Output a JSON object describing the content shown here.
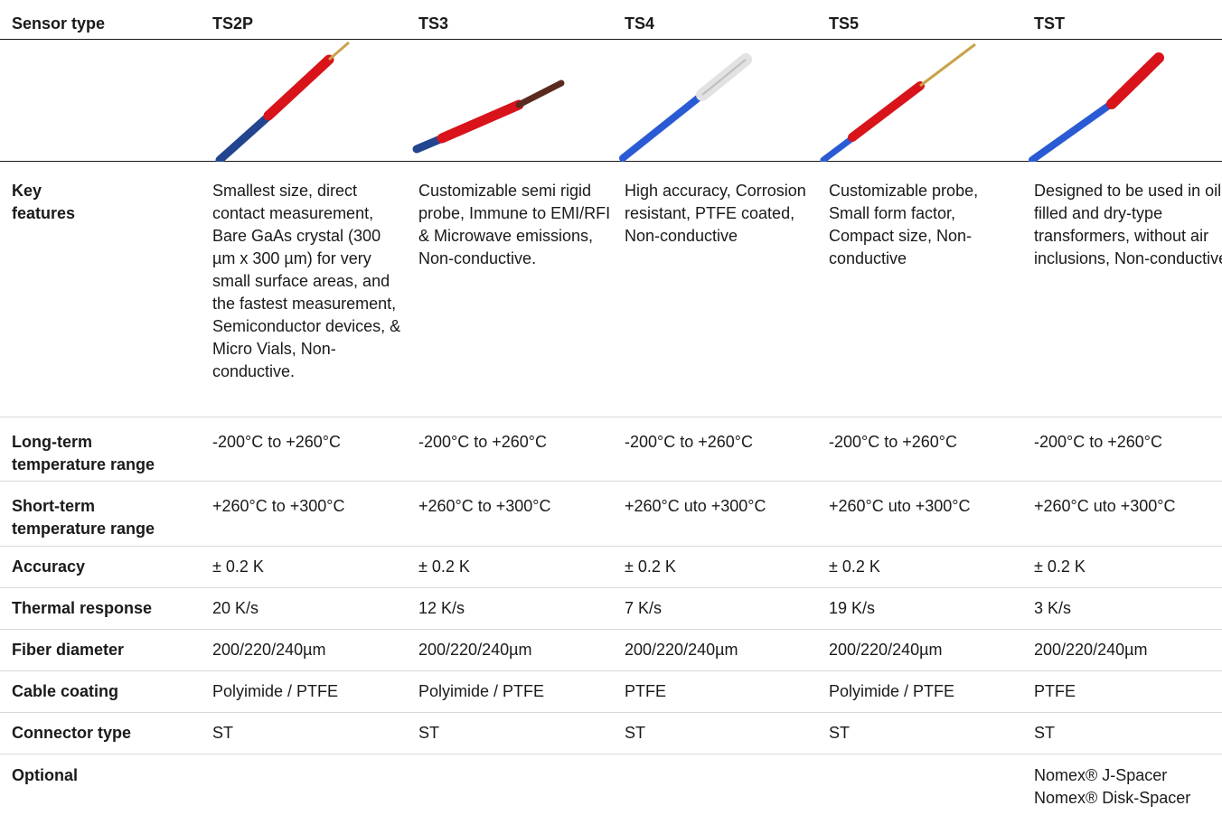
{
  "columns": [
    "TS2P",
    "TS3",
    "TS4",
    "TS5",
    "TST"
  ],
  "rows": {
    "sensor_type": {
      "label": "Sensor type"
    },
    "key_features": {
      "label_line1": "Key",
      "label_line2": "features",
      "values": [
        "Smallest size, direct contact measurement, Bare GaAs crystal (300 µm x 300 µm) for very small surface areas, and the fastest measurement, Semiconductor devices, & Micro Vials, Non-conductive.",
        "Customizable semi rigid probe, Immune to EMI/RFI & Microwave emissions, Non-conductive.",
        "High accuracy, Corrosion resistant, PTFE coated, Non-conductive",
        "Customizable probe, Small form factor, Compact size, Non-conductive",
        "Designed to be used in oil-filled and dry-type transformers, without air inclusions, Non-conductive"
      ]
    },
    "long_term": {
      "label_line1": "Long-term",
      "label_line2": "temperature range",
      "values": [
        "-200°C  to +260°C",
        "-200°C to +260°C",
        "-200°C to +260°C",
        "-200°C  to +260°C",
        "-200°C  to +260°C"
      ]
    },
    "short_term": {
      "label_line1": "Short-term",
      "label_line2": "temperature range",
      "values": [
        "+260°C to +300°C",
        "+260°C  to +300°C",
        "+260°C uto +300°C",
        "+260°C uto +300°C",
        "+260°C uto +300°C"
      ]
    },
    "accuracy": {
      "label": "Accuracy",
      "values": [
        "± 0.2 K",
        "± 0.2 K",
        "± 0.2 K",
        "± 0.2 K",
        "± 0.2 K"
      ]
    },
    "thermal_response": {
      "label": "Thermal response",
      "values": [
        "20 K/s",
        "12 K/s",
        "7 K/s",
        "19 K/s",
        "3 K/s"
      ]
    },
    "fiber_diameter": {
      "label": "Fiber diameter",
      "values": [
        "200/220/240µm",
        "200/220/240µm",
        "200/220/240µm",
        "200/220/240µm",
        "200/220/240µm"
      ]
    },
    "cable_coating": {
      "label": "Cable coating",
      "values": [
        "Polyimide / PTFE",
        "Polyimide / PTFE",
        "PTFE",
        "Polyimide / PTFE",
        "PTFE"
      ]
    },
    "connector_type": {
      "label": "Connector type",
      "values": [
        "ST",
        "ST",
        "ST",
        "ST",
        "ST"
      ]
    },
    "optional": {
      "label": "Optional",
      "values": [
        "",
        "",
        "",
        "",
        ""
      ],
      "tst_line1": "Nomex® J-Spacer",
      "tst_line2": "Nomex® Disk-Spacer"
    }
  },
  "colors": {
    "cable_blue": "#2a5bd4",
    "sleeve_red": "#d8131a",
    "tip_gold": "#c9a24a",
    "tip_brown": "#5a2a20",
    "tip_clear": "#e6e6e6"
  }
}
